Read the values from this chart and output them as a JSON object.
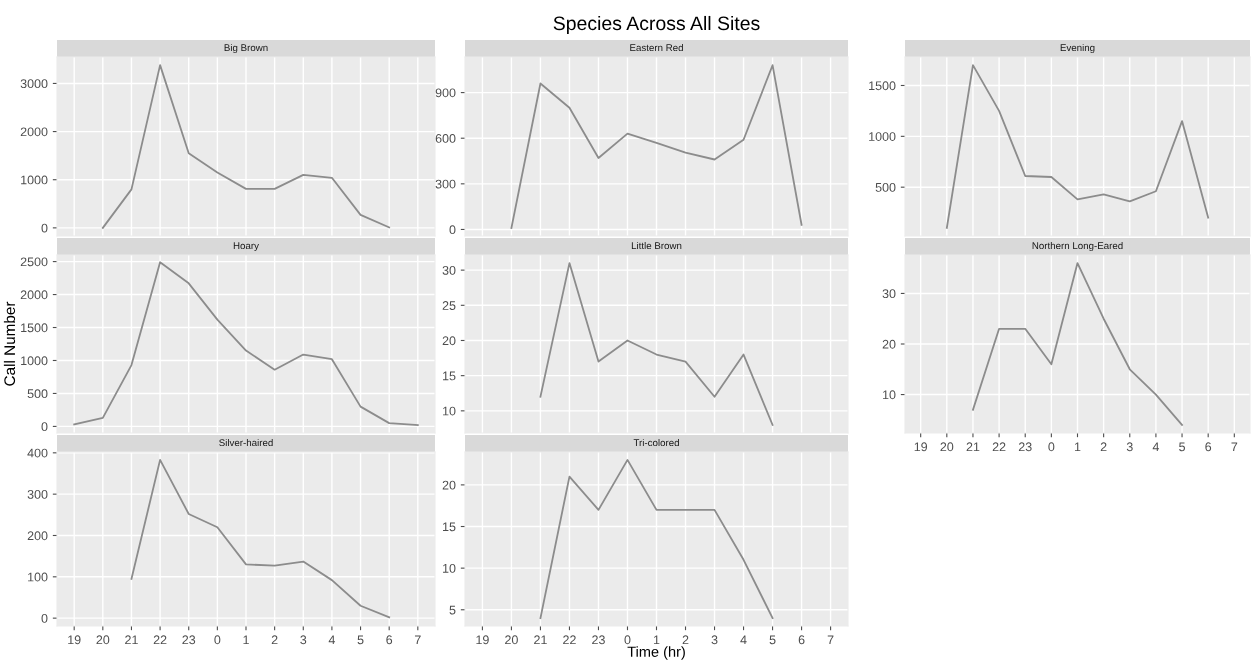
{
  "chart_data": [
    {
      "type": "line",
      "title": "Big Brown",
      "categories": [
        "19",
        "20",
        "21",
        "22",
        "23",
        "0",
        "1",
        "2",
        "3",
        "4",
        "5",
        "6",
        "7"
      ],
      "series": [
        {
          "color": "#8c8c8c",
          "values": [
            null,
            0,
            800,
            3380,
            1550,
            1150,
            810,
            810,
            1100,
            1040,
            270,
            10,
            null
          ]
        }
      ],
      "ylim": [
        -169,
        3549
      ],
      "yticks": [
        0,
        1000,
        2000,
        3000
      ],
      "grid": true,
      "tick_labels": "y"
    },
    {
      "type": "line",
      "title": "Eastern Red",
      "annotations": [
        "Species Across All Sites"
      ],
      "categories": [
        "19",
        "20",
        "21",
        "22",
        "23",
        "0",
        "1",
        "2",
        "3",
        "4",
        "5",
        "6",
        "7"
      ],
      "series": [
        {
          "color": "#8c8c8c",
          "values": [
            null,
            10,
            960,
            800,
            470,
            630,
            570,
            505,
            460,
            590,
            1080,
            30,
            null
          ]
        }
      ],
      "ylim": [
        -43,
        1134
      ],
      "yticks": [
        0,
        300,
        600,
        900
      ],
      "grid": true,
      "tick_labels": "y"
    },
    {
      "type": "line",
      "title": "Evening",
      "categories": [
        "19",
        "20",
        "21",
        "22",
        "23",
        "0",
        "1",
        "2",
        "3",
        "4",
        "5",
        "6",
        "7"
      ],
      "series": [
        {
          "color": "#8c8c8c",
          "values": [
            null,
            100,
            1700,
            1250,
            610,
            600,
            380,
            430,
            360,
            460,
            1150,
            200,
            null
          ]
        }
      ],
      "ylim": [
        20,
        1780
      ],
      "yticks": [
        500,
        1000,
        1500
      ],
      "grid": true,
      "tick_labels": "y"
    },
    {
      "type": "line",
      "title": "Hoary",
      "ylabel": "Call Number",
      "categories": [
        "19",
        "20",
        "21",
        "22",
        "23",
        "0",
        "1",
        "2",
        "3",
        "4",
        "5",
        "6",
        "7"
      ],
      "series": [
        {
          "color": "#8c8c8c",
          "values": [
            30,
            130,
            930,
            2490,
            2170,
            1620,
            1150,
            860,
            1090,
            1020,
            300,
            50,
            20
          ]
        }
      ],
      "ylim": [
        -100,
        2600
      ],
      "yticks": [
        0,
        500,
        1000,
        1500,
        2000,
        2500
      ],
      "grid": true,
      "tick_labels": "y"
    },
    {
      "type": "line",
      "title": "Little Brown",
      "categories": [
        "19",
        "20",
        "21",
        "22",
        "23",
        "0",
        "1",
        "2",
        "3",
        "4",
        "5",
        "6",
        "7"
      ],
      "series": [
        {
          "color": "#8c8c8c",
          "values": [
            null,
            null,
            12,
            31,
            17,
            20,
            18,
            17,
            12,
            18,
            8,
            null,
            null
          ]
        }
      ],
      "ylim": [
        6.85,
        32.15
      ],
      "yticks": [
        10,
        15,
        20,
        25,
        30
      ],
      "grid": true,
      "tick_labels": "y"
    },
    {
      "type": "line",
      "title": "Northern Long-Eared",
      "categories": [
        "19",
        "20",
        "21",
        "22",
        "23",
        "0",
        "1",
        "2",
        "3",
        "4",
        "5",
        "6",
        "7"
      ],
      "series": [
        {
          "color": "#8c8c8c",
          "values": [
            null,
            null,
            7,
            23,
            23,
            16,
            36,
            25,
            15,
            10,
            4,
            null,
            null
          ]
        }
      ],
      "ylim": [
        2.4,
        37.6
      ],
      "yticks": [
        10,
        20,
        30
      ],
      "grid": true
    },
    {
      "type": "line",
      "title": "Silver-haired",
      "categories": [
        "19",
        "20",
        "21",
        "22",
        "23",
        "0",
        "1",
        "2",
        "3",
        "4",
        "5",
        "6",
        "7"
      ],
      "series": [
        {
          "color": "#8c8c8c",
          "values": [
            null,
            null,
            95,
            383,
            252,
            220,
            130,
            127,
            137,
            92,
            30,
            2,
            null
          ]
        }
      ],
      "ylim": [
        -19,
        402
      ],
      "yticks": [
        0,
        100,
        200,
        300,
        400
      ],
      "grid": true
    },
    {
      "type": "line",
      "title": "Tri-colored",
      "xlabel": "Time (hr)",
      "categories": [
        "19",
        "20",
        "21",
        "22",
        "23",
        "0",
        "1",
        "2",
        "3",
        "4",
        "5",
        "6",
        "7"
      ],
      "series": [
        {
          "color": "#8c8c8c",
          "values": [
            null,
            null,
            4,
            21,
            17,
            23,
            17,
            17,
            17,
            11,
            4,
            null,
            null
          ]
        }
      ],
      "ylim": [
        3.05,
        23.95
      ],
      "yticks": [
        5,
        10,
        15,
        20
      ],
      "grid": true
    }
  ]
}
